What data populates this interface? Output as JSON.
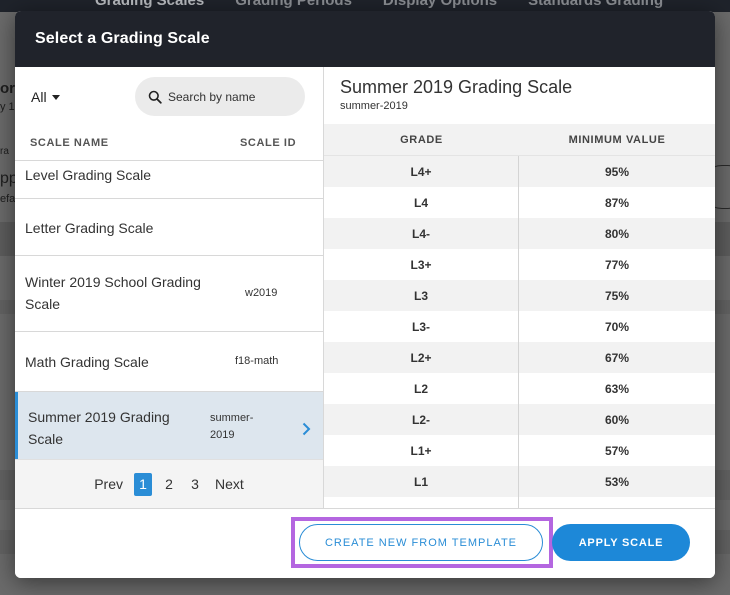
{
  "background": {
    "tabs": [
      "Grading Scales",
      "Grading Periods",
      "Display Options",
      "Standards Grading"
    ],
    "left_fragments": [
      "ori",
      "y 1",
      "ra",
      "pp",
      "efa"
    ]
  },
  "modal": {
    "title": "Select a Grading Scale",
    "filter": {
      "selected": "All"
    },
    "search": {
      "placeholder": "Search by name"
    },
    "list_headers": {
      "name": "SCALE NAME",
      "id": "SCALE ID"
    },
    "scales": [
      {
        "name": "Level Grading Scale",
        "id": ""
      },
      {
        "name": "Letter Grading Scale",
        "id": ""
      },
      {
        "name": "Winter 2019 School Grading Scale",
        "id": "w2019"
      },
      {
        "name": "Math Grading Scale",
        "id": "f18-math"
      },
      {
        "name": "Summer 2019 Grading Scale",
        "id": "summer-2019",
        "selected": true
      }
    ],
    "pagination": {
      "prev": "Prev",
      "pages": [
        "1",
        "2",
        "3"
      ],
      "current": "1",
      "next": "Next"
    },
    "detail": {
      "title": "Summer 2019 Grading Scale",
      "id": "summer-2019",
      "headers": {
        "grade": "GRADE",
        "min": "MINIMUM VALUE"
      },
      "rows": [
        {
          "grade": "L4+",
          "min": "95%"
        },
        {
          "grade": "L4",
          "min": "87%"
        },
        {
          "grade": "L4-",
          "min": "80%"
        },
        {
          "grade": "L3+",
          "min": "77%"
        },
        {
          "grade": "L3",
          "min": "75%"
        },
        {
          "grade": "L3-",
          "min": "70%"
        },
        {
          "grade": "L2+",
          "min": "67%"
        },
        {
          "grade": "L2",
          "min": "63%"
        },
        {
          "grade": "L2-",
          "min": "60%"
        },
        {
          "grade": "L1+",
          "min": "57%"
        },
        {
          "grade": "L1",
          "min": "53%"
        }
      ]
    },
    "footer": {
      "create_template_label": "CREATE NEW FROM TEMPLATE",
      "apply_label": "APPLY SCALE"
    }
  },
  "colors": {
    "accent": "#2a8dd6",
    "header_bg": "#20232b",
    "highlight": "#b466e0",
    "selected_row": "#dde6ee"
  },
  "icons": {
    "search": "search-icon",
    "dropdown": "caret-down-icon",
    "selected": "chevron-right-icon"
  }
}
